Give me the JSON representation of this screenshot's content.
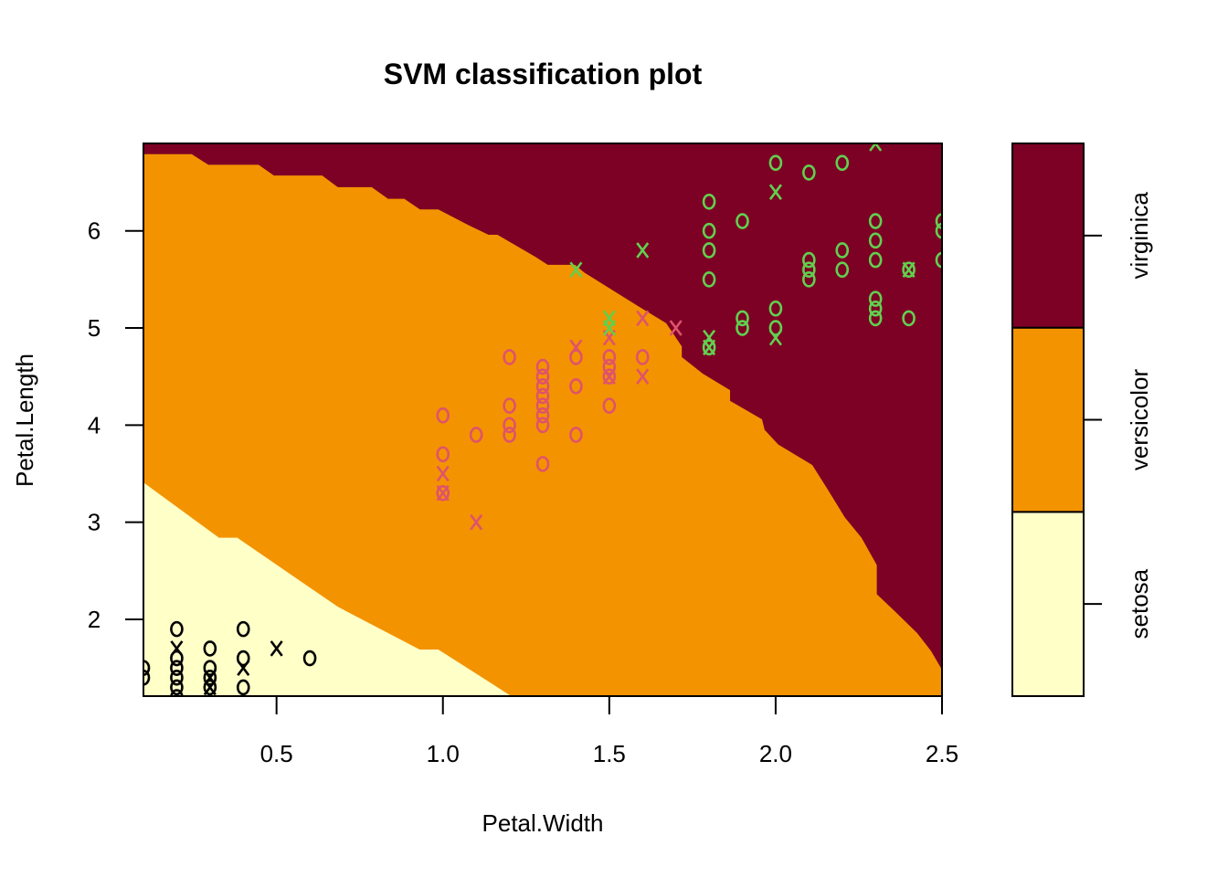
{
  "chart_data": {
    "type": "scatter",
    "title": "SVM classification plot",
    "xlabel": "Petal.Width",
    "ylabel": "Petal.Length",
    "xlim": [
      0.1,
      2.5
    ],
    "ylim": [
      1.21,
      6.9
    ],
    "xticks": [
      0.5,
      1.0,
      1.5,
      2.0,
      2.5
    ],
    "xtick_labels": [
      "0.5",
      "1.0",
      "1.5",
      "2.0",
      "2.5"
    ],
    "yticks": [
      2,
      3,
      4,
      5,
      6
    ],
    "ytick_labels": [
      "2",
      "3",
      "4",
      "5",
      "6"
    ],
    "grid": false,
    "legend_position": "right",
    "classes": [
      {
        "name": "setosa",
        "region_color": "#FFFFC8",
        "point_color": "#000000"
      },
      {
        "name": "versicolor",
        "region_color": "#F39300",
        "point_color": "#DF536B"
      },
      {
        "name": "virginica",
        "region_color": "#7D0025",
        "point_color": "#61D04F"
      }
    ],
    "marker_legend": {
      "o": "data point",
      "x": "support vector"
    },
    "regions": {
      "virginica_versicolor_boundary": [
        [
          0.1,
          6.79
        ],
        [
          0.245,
          6.79
        ],
        [
          0.295,
          6.68
        ],
        [
          0.446,
          6.68
        ],
        [
          0.492,
          6.57
        ],
        [
          0.637,
          6.57
        ],
        [
          0.684,
          6.45
        ],
        [
          0.786,
          6.45
        ],
        [
          0.835,
          6.33
        ],
        [
          0.884,
          6.33
        ],
        [
          0.931,
          6.22
        ],
        [
          0.986,
          6.22
        ],
        [
          1.082,
          6.05
        ],
        [
          1.137,
          5.96
        ],
        [
          1.164,
          5.96
        ],
        [
          1.279,
          5.73
        ],
        [
          1.315,
          5.65
        ],
        [
          1.397,
          5.65
        ],
        [
          1.425,
          5.57
        ],
        [
          1.589,
          5.22
        ],
        [
          1.671,
          5.05
        ],
        [
          1.718,
          4.81
        ],
        [
          1.718,
          4.7
        ],
        [
          1.781,
          4.53
        ],
        [
          1.863,
          4.36
        ],
        [
          1.863,
          4.25
        ],
        [
          1.959,
          4.06
        ],
        [
          1.967,
          3.95
        ],
        [
          2.008,
          3.8
        ],
        [
          2.11,
          3.59
        ],
        [
          2.156,
          3.34
        ],
        [
          2.208,
          3.05
        ],
        [
          2.258,
          2.84
        ],
        [
          2.304,
          2.56
        ],
        [
          2.304,
          2.26
        ],
        [
          2.356,
          2.09
        ],
        [
          2.425,
          1.86
        ],
        [
          2.468,
          1.67
        ],
        [
          2.5,
          1.48
        ]
      ],
      "setosa_versicolor_boundary": [
        [
          0.1,
          3.41
        ],
        [
          0.327,
          2.84
        ],
        [
          0.382,
          2.84
        ],
        [
          0.684,
          2.13
        ],
        [
          0.93,
          1.69
        ],
        [
          0.986,
          1.69
        ],
        [
          1.151,
          1.33
        ],
        [
          1.205,
          1.21
        ]
      ]
    },
    "series": [
      {
        "name": "setosa",
        "points": [
          {
            "x": 0.1,
            "y": 1.4,
            "m": "o"
          },
          {
            "x": 0.1,
            "y": 1.5,
            "m": "o"
          },
          {
            "x": 0.2,
            "y": 1.9,
            "m": "o"
          },
          {
            "x": 0.2,
            "y": 1.7,
            "m": "x"
          },
          {
            "x": 0.2,
            "y": 1.6,
            "m": "o"
          },
          {
            "x": 0.2,
            "y": 1.5,
            "m": "o"
          },
          {
            "x": 0.2,
            "y": 1.4,
            "m": "o"
          },
          {
            "x": 0.2,
            "y": 1.3,
            "m": "o"
          },
          {
            "x": 0.2,
            "y": 1.2,
            "m": "o"
          },
          {
            "x": 0.3,
            "y": 1.7,
            "m": "o"
          },
          {
            "x": 0.3,
            "y": 1.5,
            "m": "o"
          },
          {
            "x": 0.3,
            "y": 1.4,
            "m": "o"
          },
          {
            "x": 0.3,
            "y": 1.4,
            "m": "x"
          },
          {
            "x": 0.3,
            "y": 1.3,
            "m": "o"
          },
          {
            "x": 0.3,
            "y": 1.3,
            "m": "x"
          },
          {
            "x": 0.4,
            "y": 1.9,
            "m": "o"
          },
          {
            "x": 0.4,
            "y": 1.6,
            "m": "o"
          },
          {
            "x": 0.4,
            "y": 1.5,
            "m": "x"
          },
          {
            "x": 0.4,
            "y": 1.3,
            "m": "o"
          },
          {
            "x": 0.5,
            "y": 1.7,
            "m": "x"
          },
          {
            "x": 0.6,
            "y": 1.6,
            "m": "o"
          }
        ]
      },
      {
        "name": "versicolor",
        "points": [
          {
            "x": 1.0,
            "y": 4.1,
            "m": "o"
          },
          {
            "x": 1.0,
            "y": 3.7,
            "m": "o"
          },
          {
            "x": 1.0,
            "y": 3.5,
            "m": "x"
          },
          {
            "x": 1.0,
            "y": 3.3,
            "m": "o"
          },
          {
            "x": 1.0,
            "y": 3.3,
            "m": "x"
          },
          {
            "x": 1.1,
            "y": 3.9,
            "m": "o"
          },
          {
            "x": 1.1,
            "y": 3.0,
            "m": "x"
          },
          {
            "x": 1.2,
            "y": 4.7,
            "m": "o"
          },
          {
            "x": 1.2,
            "y": 4.2,
            "m": "o"
          },
          {
            "x": 1.2,
            "y": 4.0,
            "m": "o"
          },
          {
            "x": 1.2,
            "y": 3.9,
            "m": "o"
          },
          {
            "x": 1.3,
            "y": 4.6,
            "m": "o"
          },
          {
            "x": 1.3,
            "y": 4.5,
            "m": "o"
          },
          {
            "x": 1.3,
            "y": 4.4,
            "m": "o"
          },
          {
            "x": 1.3,
            "y": 4.3,
            "m": "o"
          },
          {
            "x": 1.3,
            "y": 4.2,
            "m": "o"
          },
          {
            "x": 1.3,
            "y": 4.1,
            "m": "o"
          },
          {
            "x": 1.3,
            "y": 4.0,
            "m": "o"
          },
          {
            "x": 1.3,
            "y": 3.6,
            "m": "o"
          },
          {
            "x": 1.4,
            "y": 4.8,
            "m": "x"
          },
          {
            "x": 1.4,
            "y": 4.7,
            "m": "o"
          },
          {
            "x": 1.4,
            "y": 4.4,
            "m": "o"
          },
          {
            "x": 1.4,
            "y": 3.9,
            "m": "o"
          },
          {
            "x": 1.5,
            "y": 4.9,
            "m": "x"
          },
          {
            "x": 1.5,
            "y": 4.7,
            "m": "o"
          },
          {
            "x": 1.5,
            "y": 4.6,
            "m": "o"
          },
          {
            "x": 1.5,
            "y": 4.5,
            "m": "o"
          },
          {
            "x": 1.5,
            "y": 4.5,
            "m": "x"
          },
          {
            "x": 1.5,
            "y": 4.2,
            "m": "o"
          },
          {
            "x": 1.6,
            "y": 5.1,
            "m": "x"
          },
          {
            "x": 1.6,
            "y": 4.7,
            "m": "o"
          },
          {
            "x": 1.6,
            "y": 4.5,
            "m": "x"
          },
          {
            "x": 1.7,
            "y": 5.0,
            "m": "x"
          }
        ]
      },
      {
        "name": "virginica",
        "points": [
          {
            "x": 1.4,
            "y": 5.6,
            "m": "x"
          },
          {
            "x": 1.5,
            "y": 5.1,
            "m": "x"
          },
          {
            "x": 1.5,
            "y": 5.0,
            "m": "x"
          },
          {
            "x": 1.6,
            "y": 5.8,
            "m": "x"
          },
          {
            "x": 1.8,
            "y": 6.3,
            "m": "o"
          },
          {
            "x": 1.8,
            "y": 6.0,
            "m": "o"
          },
          {
            "x": 1.8,
            "y": 5.8,
            "m": "o"
          },
          {
            "x": 1.8,
            "y": 5.5,
            "m": "o"
          },
          {
            "x": 1.8,
            "y": 4.9,
            "m": "x"
          },
          {
            "x": 1.8,
            "y": 4.8,
            "m": "o"
          },
          {
            "x": 1.8,
            "y": 4.8,
            "m": "x"
          },
          {
            "x": 1.9,
            "y": 6.1,
            "m": "o"
          },
          {
            "x": 1.9,
            "y": 5.1,
            "m": "o"
          },
          {
            "x": 1.9,
            "y": 5.0,
            "m": "o"
          },
          {
            "x": 2.0,
            "y": 6.7,
            "m": "o"
          },
          {
            "x": 2.0,
            "y": 6.4,
            "m": "x"
          },
          {
            "x": 2.0,
            "y": 5.2,
            "m": "o"
          },
          {
            "x": 2.0,
            "y": 5.0,
            "m": "o"
          },
          {
            "x": 2.0,
            "y": 4.9,
            "m": "x"
          },
          {
            "x": 2.1,
            "y": 6.6,
            "m": "o"
          },
          {
            "x": 2.1,
            "y": 5.7,
            "m": "o"
          },
          {
            "x": 2.1,
            "y": 5.6,
            "m": "o"
          },
          {
            "x": 2.1,
            "y": 5.5,
            "m": "o"
          },
          {
            "x": 2.2,
            "y": 6.7,
            "m": "o"
          },
          {
            "x": 2.2,
            "y": 5.8,
            "m": "o"
          },
          {
            "x": 2.2,
            "y": 5.6,
            "m": "o"
          },
          {
            "x": 2.3,
            "y": 6.9,
            "m": "x"
          },
          {
            "x": 2.3,
            "y": 6.1,
            "m": "o"
          },
          {
            "x": 2.3,
            "y": 5.9,
            "m": "o"
          },
          {
            "x": 2.3,
            "y": 5.7,
            "m": "o"
          },
          {
            "x": 2.3,
            "y": 5.3,
            "m": "o"
          },
          {
            "x": 2.3,
            "y": 5.2,
            "m": "o"
          },
          {
            "x": 2.3,
            "y": 5.1,
            "m": "o"
          },
          {
            "x": 2.4,
            "y": 5.6,
            "m": "o"
          },
          {
            "x": 2.4,
            "y": 5.6,
            "m": "x"
          },
          {
            "x": 2.4,
            "y": 5.1,
            "m": "o"
          },
          {
            "x": 2.5,
            "y": 6.1,
            "m": "o"
          },
          {
            "x": 2.5,
            "y": 6.0,
            "m": "o"
          },
          {
            "x": 2.5,
            "y": 5.7,
            "m": "o"
          }
        ]
      }
    ]
  }
}
